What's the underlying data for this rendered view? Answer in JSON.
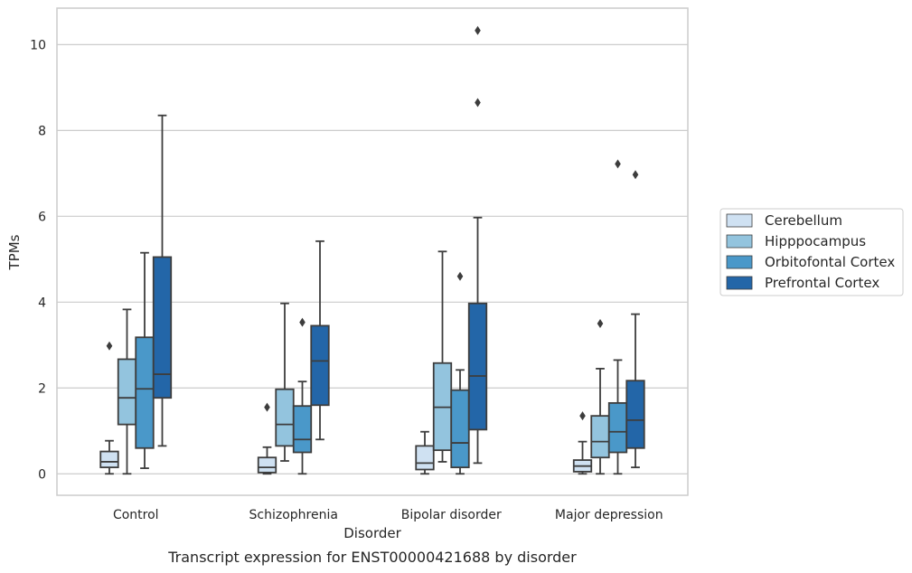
{
  "chart_data": {
    "type": "box",
    "xlabel": "Disorder",
    "ylabel": "TPMs",
    "caption": "Transcript expression for ENST00000421688 by disorder",
    "ylim": [
      -0.5,
      10.85
    ],
    "yticks": [
      0,
      2,
      4,
      6,
      8,
      10
    ],
    "grid": "horizontal",
    "legend_position": "right",
    "categories": [
      "Control",
      "Schizophrenia",
      "Bipolar disorder",
      "Major depression"
    ],
    "series": [
      {
        "name": "Cerebellum",
        "color": "#cfe1f2",
        "boxes": [
          {
            "whislo": 0.0,
            "q1": 0.15,
            "med": 0.28,
            "q3": 0.52,
            "whishi": 0.77,
            "fliers": [
              2.98
            ]
          },
          {
            "whislo": 0.0,
            "q1": 0.03,
            "med": 0.15,
            "q3": 0.38,
            "whishi": 0.62,
            "fliers": [
              1.55
            ]
          },
          {
            "whislo": 0.0,
            "q1": 0.1,
            "med": 0.25,
            "q3": 0.65,
            "whishi": 0.98,
            "fliers": []
          },
          {
            "whislo": 0.0,
            "q1": 0.05,
            "med": 0.18,
            "q3": 0.32,
            "whishi": 0.75,
            "fliers": [
              1.35
            ]
          }
        ]
      },
      {
        "name": "Hipppocampus",
        "color": "#93c4de",
        "boxes": [
          {
            "whislo": 0.0,
            "q1": 1.15,
            "med": 1.77,
            "q3": 2.67,
            "whishi": 3.83,
            "fliers": []
          },
          {
            "whislo": 0.3,
            "q1": 0.65,
            "med": 1.15,
            "q3": 1.97,
            "whishi": 3.97,
            "fliers": []
          },
          {
            "whislo": 0.28,
            "q1": 0.55,
            "med": 1.55,
            "q3": 2.58,
            "whishi": 5.18,
            "fliers": []
          },
          {
            "whislo": 0.0,
            "q1": 0.38,
            "med": 0.75,
            "q3": 1.35,
            "whishi": 2.45,
            "fliers": [
              3.5
            ]
          }
        ]
      },
      {
        "name": "Orbitofontal Cortex",
        "color": "#4a98c9",
        "boxes": [
          {
            "whislo": 0.13,
            "q1": 0.6,
            "med": 1.98,
            "q3": 3.18,
            "whishi": 5.15,
            "fliers": []
          },
          {
            "whislo": 0.0,
            "q1": 0.5,
            "med": 0.8,
            "q3": 1.58,
            "whishi": 2.15,
            "fliers": [
              3.53
            ]
          },
          {
            "whislo": 0.0,
            "q1": 0.15,
            "med": 0.72,
            "q3": 1.95,
            "whishi": 2.42,
            "fliers": [
              4.6
            ]
          },
          {
            "whislo": 0.0,
            "q1": 0.5,
            "med": 0.98,
            "q3": 1.65,
            "whishi": 2.65,
            "fliers": [
              7.22
            ]
          }
        ]
      },
      {
        "name": "Prefrontal Cortex",
        "color": "#2366a8",
        "boxes": [
          {
            "whislo": 0.65,
            "q1": 1.77,
            "med": 2.32,
            "q3": 5.05,
            "whishi": 8.35,
            "fliers": []
          },
          {
            "whislo": 0.8,
            "q1": 1.6,
            "med": 2.63,
            "q3": 3.45,
            "whishi": 5.42,
            "fliers": []
          },
          {
            "whislo": 0.25,
            "q1": 1.03,
            "med": 2.28,
            "q3": 3.97,
            "whishi": 5.97,
            "fliers": [
              8.65,
              10.33
            ]
          },
          {
            "whislo": 0.15,
            "q1": 0.6,
            "med": 1.25,
            "q3": 2.17,
            "whishi": 3.72,
            "fliers": [
              6.97
            ]
          }
        ]
      }
    ]
  }
}
